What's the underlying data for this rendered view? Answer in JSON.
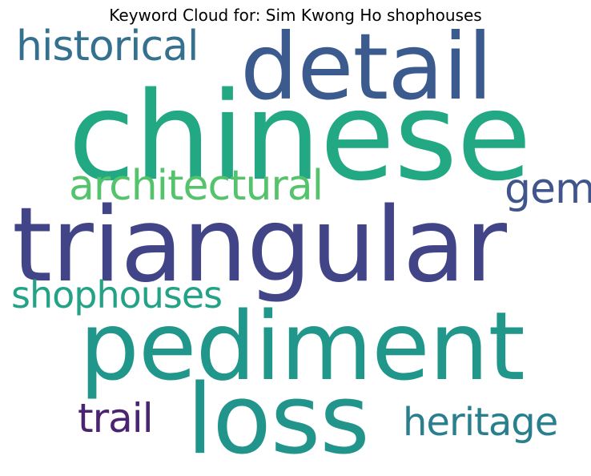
{
  "title": "Keyword Cloud for: Sim Kwong Ho shophouses",
  "words": [
    {
      "text": "detail",
      "color": "#3b5a8e"
    },
    {
      "text": "historical",
      "color": "#35718f"
    },
    {
      "text": "chinese",
      "color": "#22a883"
    },
    {
      "text": "architectural",
      "color": "#55c36c"
    },
    {
      "text": "gem",
      "color": "#40558c"
    },
    {
      "text": "triangular",
      "color": "#414587"
    },
    {
      "text": "shophouses",
      "color": "#24a286"
    },
    {
      "text": "pediment",
      "color": "#21978b"
    },
    {
      "text": "loss",
      "color": "#21958b"
    },
    {
      "text": "trail",
      "color": "#4a2470"
    },
    {
      "text": "heritage",
      "color": "#2a7f8f"
    }
  ]
}
